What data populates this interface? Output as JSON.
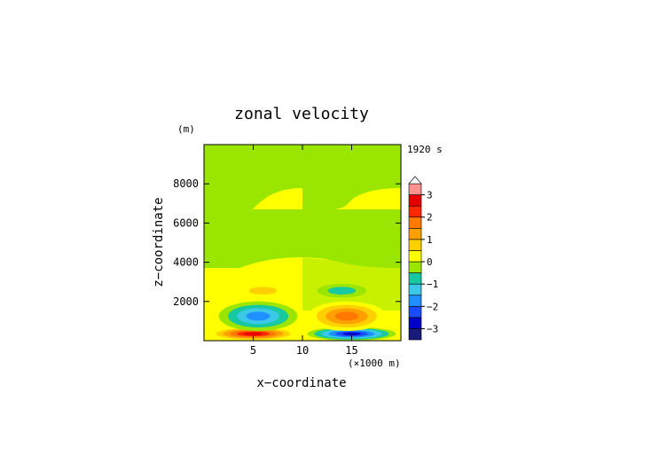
{
  "chart_data": {
    "type": "heatmap",
    "title": "zonal velocity",
    "xlabel": "x−coordinate",
    "ylabel": "z−coordinate",
    "x_unit": "(×1000 m)",
    "y_unit": "(m)",
    "time_label": "1920 s",
    "xlim": [
      0,
      20000
    ],
    "ylim": [
      0,
      10000
    ],
    "x_ticks": [
      5,
      10,
      15
    ],
    "y_ticks": [
      2000,
      4000,
      6000,
      8000
    ],
    "grid": false,
    "colorbar": {
      "levels": [
        -3.5,
        -3.0,
        -2.5,
        -2.0,
        -1.5,
        -1.0,
        -0.5,
        0.0,
        0.5,
        1.0,
        1.5,
        2.0,
        2.5,
        3.0,
        3.5
      ],
      "labels": [
        "3",
        "2",
        "1",
        "0",
        "−1",
        "−2",
        "−3"
      ],
      "label_values": [
        3,
        2,
        1,
        0,
        -1,
        -2,
        -3
      ],
      "colors": [
        "#1a1a7a",
        "#0000c8",
        "#1a4cff",
        "#1e90ff",
        "#3cc8e8",
        "#18c8a0",
        "#9be600",
        "#ffff00",
        "#ffd000",
        "#ffa000",
        "#ff7800",
        "#ff2800",
        "#e60000",
        "#ff9090"
      ],
      "extend_top_arrow": true
    },
    "features": [
      {
        "x": [
          500,
          9500
        ],
        "z": [
          0,
          700
        ],
        "value": 3.2
      },
      {
        "x": [
          10500,
          19500
        ],
        "z": [
          0,
          700
        ],
        "value": -3.2
      },
      {
        "x": [
          1500,
          9500
        ],
        "z": [
          500,
          2000
        ],
        "value": -1.8
      },
      {
        "x": [
          10500,
          18500
        ],
        "z": [
          500,
          2000
        ],
        "value": 1.8
      },
      {
        "x": [
          3500,
          8500
        ],
        "z": [
          2200,
          2900
        ],
        "value": 0.8
      },
      {
        "x": [
          11500,
          16500
        ],
        "z": [
          2200,
          2900
        ],
        "value": -0.8
      }
    ]
  }
}
